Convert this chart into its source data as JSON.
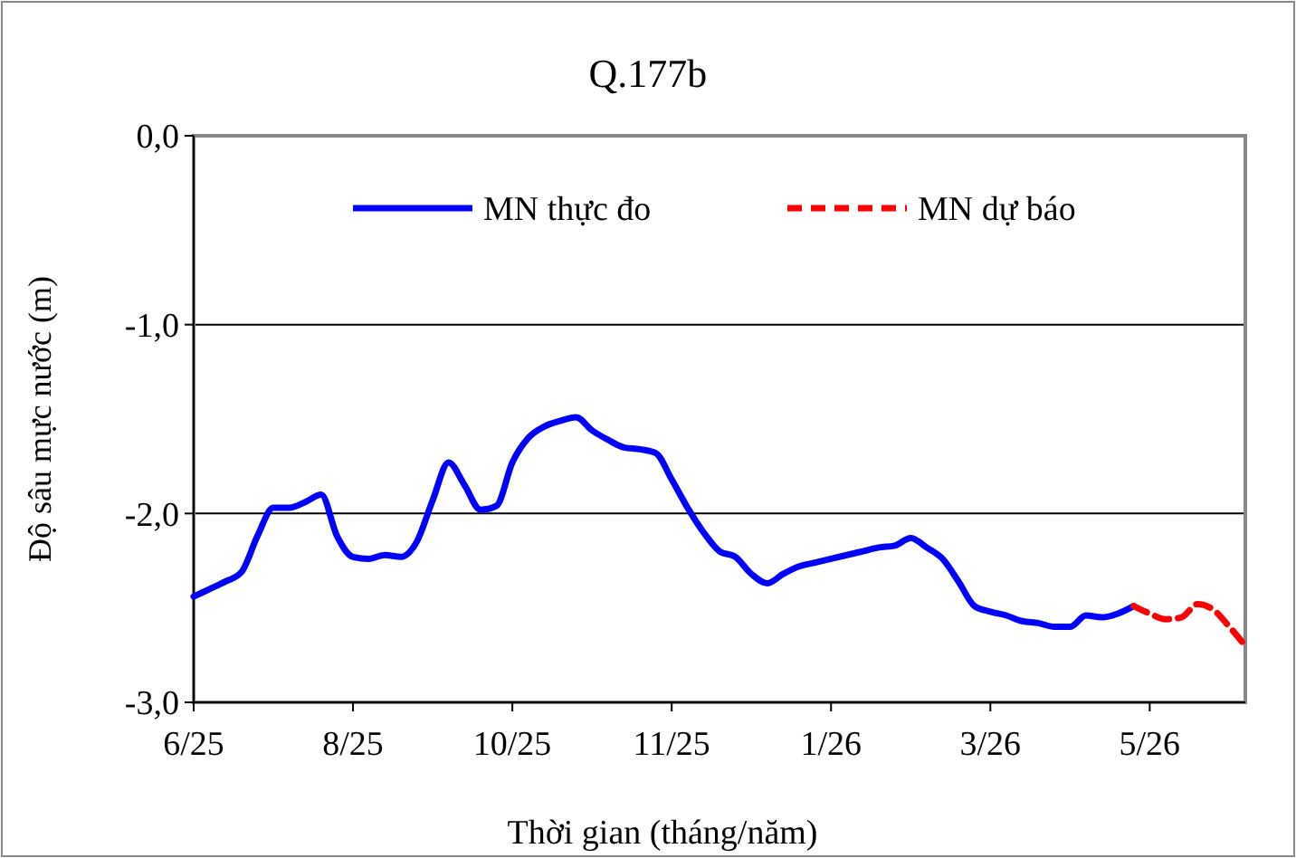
{
  "chart_data": {
    "type": "line",
    "title": "Q.177b",
    "xlabel": "Thời gian  (tháng/năm)",
    "ylabel": "Độ sâu mực nước (m)",
    "categories": [
      "6/25",
      null,
      null,
      null,
      null,
      null,
      null,
      null,
      null,
      null,
      "8/25",
      null,
      null,
      null,
      null,
      null,
      null,
      null,
      null,
      null,
      "10/25",
      null,
      null,
      null,
      null,
      null,
      null,
      null,
      null,
      null,
      "11/25",
      null,
      null,
      null,
      null,
      null,
      null,
      null,
      null,
      null,
      "1/26",
      null,
      null,
      null,
      null,
      null,
      null,
      null,
      null,
      null,
      "3/26",
      null,
      null,
      null,
      null,
      null,
      null,
      null,
      null,
      null,
      "5/26",
      null,
      null,
      null,
      null,
      null,
      null
    ],
    "ylim": [
      -3,
      0
    ],
    "yticks": [
      {
        "value": -3,
        "label": "-3,0"
      },
      {
        "value": -2,
        "label": "-2,0"
      },
      {
        "value": -1,
        "label": "-1,0"
      },
      {
        "value": 0,
        "label": "0,0"
      }
    ],
    "grid": "y",
    "legend": "top",
    "marker": "none",
    "series": [
      {
        "name": "MN thực đo",
        "color": "#0000ff",
        "line_style": "solid",
        "values": [
          -2.44,
          -2.4,
          -2.36,
          -2.31,
          -2.12,
          -1.97,
          -1.97,
          -1.94,
          -1.9,
          -2.12,
          -2.23,
          -2.24,
          -2.22,
          -2.23,
          -2.15,
          -1.93,
          -1.73,
          -1.85,
          -1.98,
          -1.96,
          -1.73,
          -1.6,
          -1.54,
          -1.51,
          -1.49,
          -1.56,
          -1.61,
          -1.65,
          -1.66,
          -1.68,
          -1.82,
          -1.97,
          -2.1,
          -2.2,
          -2.23,
          -2.32,
          -2.37,
          -2.32,
          -2.28,
          -2.26,
          -2.24,
          -2.22,
          -2.2,
          -2.18,
          -2.17,
          -2.13,
          -2.18,
          -2.24,
          -2.36,
          -2.49,
          -2.52,
          -2.54,
          -2.57,
          -2.58,
          -2.6,
          -2.6,
          -2.54,
          -2.55,
          -2.53,
          -2.49,
          null,
          null,
          null,
          null,
          null,
          null,
          null
        ]
      },
      {
        "name": "MN dự báo",
        "color": "#ff0000",
        "line_style": "dashed",
        "values": [
          null,
          null,
          null,
          null,
          null,
          null,
          null,
          null,
          null,
          null,
          null,
          null,
          null,
          null,
          null,
          null,
          null,
          null,
          null,
          null,
          null,
          null,
          null,
          null,
          null,
          null,
          null,
          null,
          null,
          null,
          null,
          null,
          null,
          null,
          null,
          null,
          null,
          null,
          null,
          null,
          null,
          null,
          null,
          null,
          null,
          null,
          null,
          null,
          null,
          null,
          null,
          null,
          null,
          null,
          null,
          null,
          null,
          null,
          null,
          -2.49,
          -2.53,
          -2.56,
          -2.55,
          -2.48,
          -2.51,
          -2.6,
          -2.7
        ]
      }
    ]
  }
}
